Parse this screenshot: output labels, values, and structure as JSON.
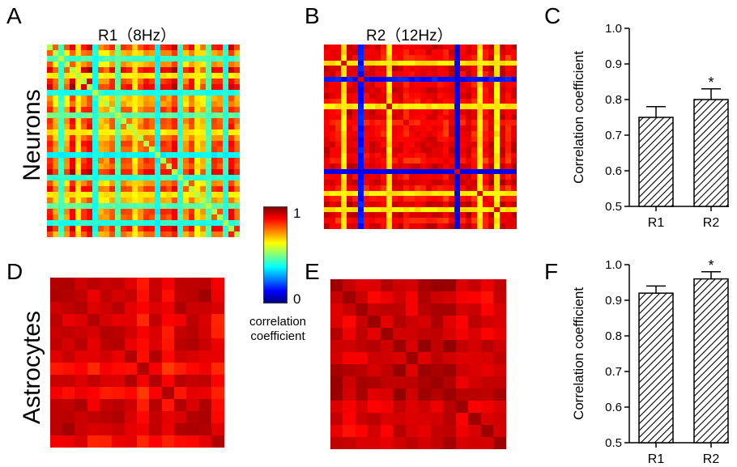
{
  "row_labels": {
    "top": "Neurons",
    "bottom": "Astrocytes"
  },
  "panels": {
    "A": {
      "letter": "A",
      "title": "R1（8Hz）"
    },
    "B": {
      "letter": "B",
      "title": "R2（12Hz）"
    },
    "C": {
      "letter": "C"
    },
    "D": {
      "letter": "D"
    },
    "E": {
      "letter": "E"
    },
    "F": {
      "letter": "F"
    }
  },
  "colorbar": {
    "max_label": "1",
    "min_label": "0",
    "caption_line1": "correlation",
    "caption_line2": "coefficient",
    "colormap": "jet"
  },
  "chart_data": [
    {
      "panel": "A",
      "type": "heatmap",
      "title": "R1（8Hz）",
      "size": 34,
      "value_range": [
        0,
        1
      ],
      "colormap": "jet",
      "description_level": "neuron correlation matrix, mostly 0.6-1 with cyan bands"
    },
    {
      "panel": "B",
      "type": "heatmap",
      "title": "R2（12Hz）",
      "size": 34,
      "value_range": [
        0,
        1
      ],
      "colormap": "jet"
    },
    {
      "panel": "C",
      "type": "bar",
      "categories": [
        "R1",
        "R2"
      ],
      "values": [
        0.75,
        0.8
      ],
      "errors": [
        0.03,
        0.03
      ],
      "significance": [
        "",
        "*"
      ],
      "ylabel": "Correlation coefficient",
      "ylim": [
        0.5,
        1.0
      ],
      "yticks": [
        "0.5",
        "0.6",
        "0.7",
        "0.8",
        "0.9",
        "1.0"
      ],
      "fill": "hatched"
    },
    {
      "panel": "D",
      "type": "heatmap",
      "size": 14,
      "value_range": [
        0,
        1
      ],
      "colormap": "jet"
    },
    {
      "panel": "E",
      "type": "heatmap",
      "size": 14,
      "value_range": [
        0,
        1
      ],
      "colormap": "jet"
    },
    {
      "panel": "F",
      "type": "bar",
      "categories": [
        "R1",
        "R2"
      ],
      "values": [
        0.92,
        0.96
      ],
      "errors": [
        0.02,
        0.02
      ],
      "significance": [
        "",
        "*"
      ],
      "ylabel": "Correlation coefficient",
      "ylim": [
        0.5,
        1.0
      ],
      "yticks": [
        "0.5",
        "0.6",
        "0.7",
        "0.8",
        "0.9",
        "1.0"
      ],
      "fill": "hatched"
    }
  ]
}
